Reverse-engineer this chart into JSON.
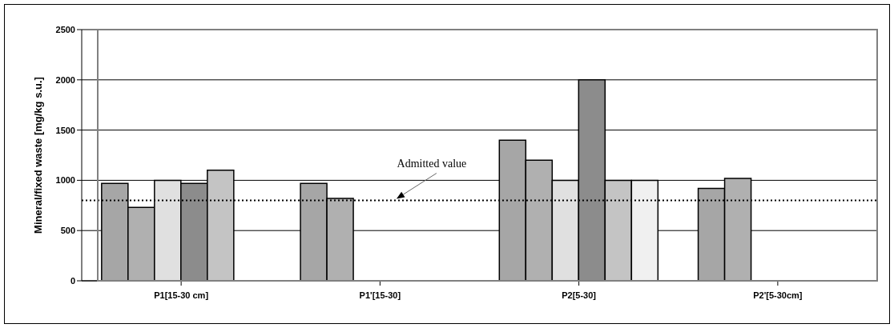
{
  "chart_data": {
    "type": "bar",
    "ylabel": "Mineral/fixed waste [mg/kg s.u.]",
    "categories": [
      "P1[15-30 cm]",
      "P1'[15-30]",
      "P2[5-30]",
      "P2'[5-30cm]"
    ],
    "series": [
      {
        "color": "#a6a6a6",
        "values": [
          970,
          970,
          1400,
          920
        ]
      },
      {
        "color": "#b0b0b0",
        "values": [
          730,
          820,
          1200,
          1020
        ]
      },
      {
        "color": "#e0e0e0",
        "values": [
          1000,
          null,
          1000,
          null
        ]
      },
      {
        "color": "#8c8c8c",
        "values": [
          970,
          null,
          2000,
          null
        ]
      },
      {
        "color": "#c4c4c4",
        "values": [
          1100,
          null,
          1000,
          null
        ]
      },
      {
        "color": "#f0f0f0",
        "values": [
          null,
          null,
          1000,
          null
        ]
      }
    ],
    "ylim": [
      0,
      2500
    ],
    "yticks": [
      0,
      500,
      1000,
      1500,
      2000,
      2500
    ],
    "grid": "y",
    "ref_lines": [
      {
        "axis": "y",
        "value": 800,
        "label": "Admitted value",
        "line_style": "dotted",
        "color": "#000000"
      }
    ]
  }
}
